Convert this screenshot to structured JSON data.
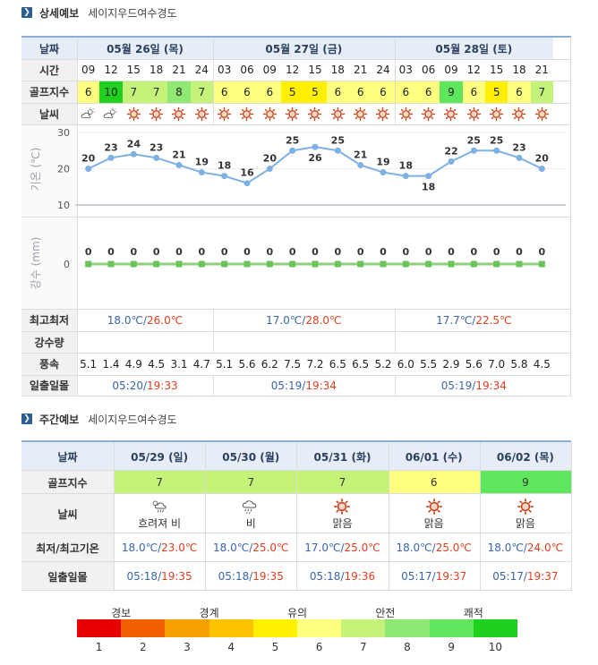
{
  "detail": {
    "title": "상세예보",
    "place": "세이지우드여수경도",
    "row_labels": {
      "date": "날짜",
      "time": "시간",
      "golf": "골프지수",
      "weather": "날씨",
      "minmax": "최고최저",
      "precip": "강수량",
      "wind": "풍속",
      "sun": "일출일몰"
    },
    "days": [
      {
        "label": "05월 26일 (목)",
        "minmax_min": "18.0℃",
        "minmax_max": "26.0℃",
        "sunrise": "05:20",
        "sunset": "19:33"
      },
      {
        "label": "05월 27일 (금)",
        "minmax_min": "17.0℃",
        "minmax_max": "28.0℃",
        "sunrise": "05:19",
        "sunset": "19:34"
      },
      {
        "label": "05월 28일 (토)",
        "minmax_min": "17.7℃",
        "minmax_max": "22.5℃",
        "sunrise": "05:19",
        "sunset": "19:34"
      }
    ],
    "times": [
      "09",
      "12",
      "15",
      "18",
      "21",
      "24",
      "03",
      "06",
      "09",
      "12",
      "15",
      "18",
      "21",
      "24",
      "03",
      "06",
      "09",
      "12",
      "15",
      "18",
      "21"
    ],
    "golf_index": [
      6,
      10,
      7,
      7,
      8,
      7,
      6,
      6,
      6,
      5,
      5,
      6,
      6,
      6,
      6,
      6,
      9,
      6,
      5,
      6,
      7
    ],
    "weather_icons": [
      "cloudy-sun-icon",
      "cloudy-sun-icon",
      "sun-icon",
      "sun-icon",
      "sun-icon",
      "sun-icon",
      "sun-icon",
      "sun-icon",
      "sun-icon",
      "sun-icon",
      "sun-icon",
      "sun-icon",
      "sun-icon",
      "sun-icon",
      "sun-icon",
      "sun-icon",
      "sun-icon",
      "sun-icon",
      "sun-icon",
      "sun-icon",
      "sun-icon"
    ],
    "wind": [
      "5.1",
      "1.4",
      "4.9",
      "4.5",
      "3.1",
      "4.7",
      "5.1",
      "5.6",
      "6.2",
      "7.5",
      "7.2",
      "6.5",
      "6.5",
      "5.2",
      "6.0",
      "5.5",
      "2.9",
      "5.6",
      "7.0",
      "5.8",
      "4.5"
    ]
  },
  "chart_data": [
    {
      "type": "line",
      "ylabel": "기온 (℃)",
      "ylim": [
        10,
        30
      ],
      "yticks": [
        "30",
        "20",
        "10"
      ],
      "x": [
        "09",
        "12",
        "15",
        "18",
        "21",
        "24",
        "03",
        "06",
        "09",
        "12",
        "15",
        "18",
        "21",
        "24",
        "03",
        "06",
        "09",
        "12",
        "15",
        "18",
        "21"
      ],
      "values": [
        20,
        23,
        24,
        23,
        21,
        19,
        18,
        16,
        20,
        25,
        26,
        25,
        21,
        19,
        18,
        18,
        22,
        25,
        25,
        23,
        20
      ],
      "labels": [
        "20",
        "23",
        "24",
        "23",
        "21",
        "19",
        "18",
        "16",
        "20",
        "25",
        "26",
        "25",
        "21",
        "19",
        "18",
        "18",
        "22",
        "25",
        "25",
        "23",
        "20"
      ],
      "line_color": "#7eb1e3"
    },
    {
      "type": "line",
      "ylabel": "강수 (mm)",
      "yticks": [
        "0"
      ],
      "x": [
        "09",
        "12",
        "15",
        "18",
        "21",
        "24",
        "03",
        "06",
        "09",
        "12",
        "15",
        "18",
        "21",
        "24",
        "03",
        "06",
        "09",
        "12",
        "15",
        "18",
        "21"
      ],
      "values": [
        0,
        0,
        0,
        0,
        0,
        0,
        0,
        0,
        0,
        0,
        0,
        0,
        0,
        0,
        0,
        0,
        0,
        0,
        0,
        0,
        0
      ],
      "labels": [
        "0",
        "0",
        "0",
        "0",
        "0",
        "0",
        "0",
        "0",
        "0",
        "0",
        "0",
        "0",
        "0",
        "0",
        "0",
        "0",
        "0",
        "0",
        "0",
        "0",
        "0"
      ],
      "line_color": "#8fd07e"
    }
  ],
  "weekly": {
    "title": "주간예보",
    "place": "세이지우드여수경도",
    "row_labels": {
      "date": "날짜",
      "golf": "골프지수",
      "weather": "날씨",
      "temp": "최저/최고기온",
      "sun": "일출일몰"
    },
    "days": [
      {
        "date": "05/29 (일)",
        "golf": 7,
        "icon": "cloudy-rain-icon",
        "weather": "흐려져 비",
        "min": "18.0℃",
        "max": "23.0℃",
        "sunrise": "05:18",
        "sunset": "19:35"
      },
      {
        "date": "05/30 (월)",
        "golf": 7,
        "icon": "rain-icon",
        "weather": "비",
        "min": "18.0℃",
        "max": "25.0℃",
        "sunrise": "05:18",
        "sunset": "19:35"
      },
      {
        "date": "05/31 (화)",
        "golf": 7,
        "icon": "sun-icon",
        "weather": "맑음",
        "min": "17.0℃",
        "max": "25.0℃",
        "sunrise": "05:18",
        "sunset": "19:36"
      },
      {
        "date": "06/01 (수)",
        "golf": 6,
        "icon": "sun-icon",
        "weather": "맑음",
        "min": "18.0℃",
        "max": "25.0℃",
        "sunrise": "05:17",
        "sunset": "19:37"
      },
      {
        "date": "06/02 (목)",
        "golf": 9,
        "icon": "sun-icon",
        "weather": "맑음",
        "min": "18.0℃",
        "max": "24.0℃",
        "sunrise": "05:17",
        "sunset": "19:37"
      }
    ]
  },
  "legend": {
    "groups": [
      "경보",
      "경계",
      "유의",
      "안전",
      "쾌적"
    ],
    "numbers": [
      "1",
      "2",
      "3",
      "4",
      "5",
      "6",
      "7",
      "8",
      "9",
      "10"
    ]
  },
  "colors": {
    "scale": [
      "#e60000",
      "#f06000",
      "#f7a000",
      "#fcc300",
      "#fff000",
      "#ffff80",
      "#c5f37a",
      "#8ee873",
      "#5fe65c",
      "#1fd01f"
    ],
    "min_temp": "#3a66a8",
    "max_temp": "#e0401f",
    "header_bg": "#e6edf6",
    "label_bg": "#f1f1f1"
  }
}
